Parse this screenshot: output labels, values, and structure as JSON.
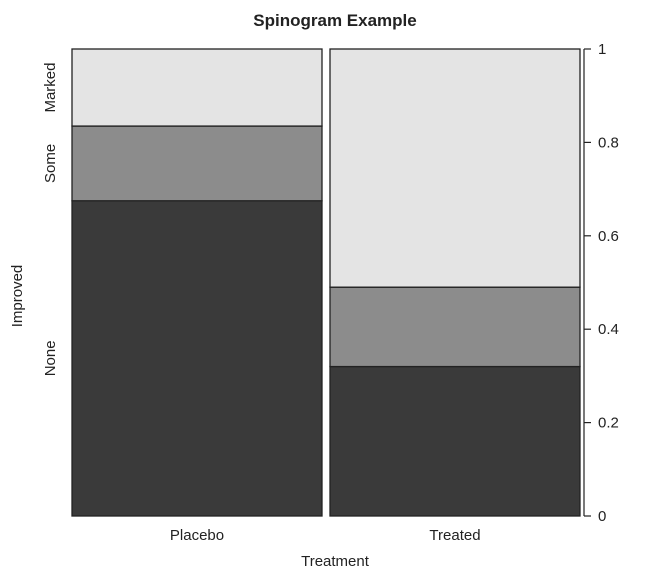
{
  "chart_data": {
    "type": "bar",
    "stacked": true,
    "variant": "spinogram",
    "title": "Spinogram Example",
    "xlabel": "Treatment",
    "ylabel": "Improved",
    "categories": [
      "Placebo",
      "Treated"
    ],
    "category_widths": [
      0.5,
      0.5
    ],
    "series": [
      {
        "name": "None",
        "values": [
          0.675,
          0.32
        ],
        "color": "#3a3a3a"
      },
      {
        "name": "Some",
        "values": [
          0.16,
          0.17
        ],
        "color": "#8c8c8c"
      },
      {
        "name": "Marked",
        "values": [
          0.165,
          0.51
        ],
        "color": "#e4e4e4"
      }
    ],
    "ylim": [
      0,
      1
    ],
    "yticks": [
      "0",
      "0.2",
      "0.4",
      "0.6",
      "0.8",
      "1"
    ],
    "yaxis_side": "right",
    "grid": false,
    "legend": "none"
  }
}
